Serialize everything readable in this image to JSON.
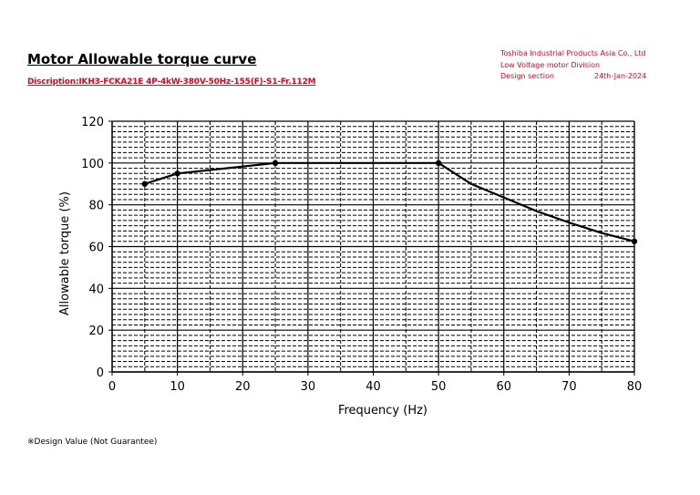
{
  "header": {
    "title": "Motor Allowable torque curve",
    "description": "Discription:IKH3-FCKA21E 4P-4kW-380V-50Hz-155(F)-S1-Fr.112M",
    "company_lines": [
      "Toshiba Industrial Products Asia Co., Ltd",
      "Low Voltage motor Division"
    ],
    "section": "Design section",
    "date": "24th-Jan-2024"
  },
  "footnote": "※Design Value (Not Guarantee)",
  "colors": {
    "accent": "#e8001c",
    "line": "#000000"
  },
  "chart_data": {
    "type": "line",
    "xlabel": "Frequency (Hz)",
    "ylabel": "Allowable torque (%)",
    "xlim": [
      0,
      80
    ],
    "ylim": [
      0,
      120
    ],
    "xticks": [
      0,
      10,
      20,
      30,
      40,
      50,
      60,
      70,
      80
    ],
    "yticks": [
      0,
      20,
      40,
      60,
      80,
      100,
      120
    ],
    "x_minor_step": 5,
    "y_minor_step": 5,
    "grid": true,
    "series": [
      {
        "x": [
          5,
          10,
          25,
          50,
          55,
          60,
          65,
          70,
          75,
          80
        ],
        "y": [
          90,
          95,
          100,
          100,
          90,
          83.5,
          77,
          71.5,
          66.5,
          62.5
        ],
        "markers": [
          true,
          true,
          true,
          true,
          false,
          false,
          false,
          false,
          false,
          true
        ]
      }
    ]
  }
}
